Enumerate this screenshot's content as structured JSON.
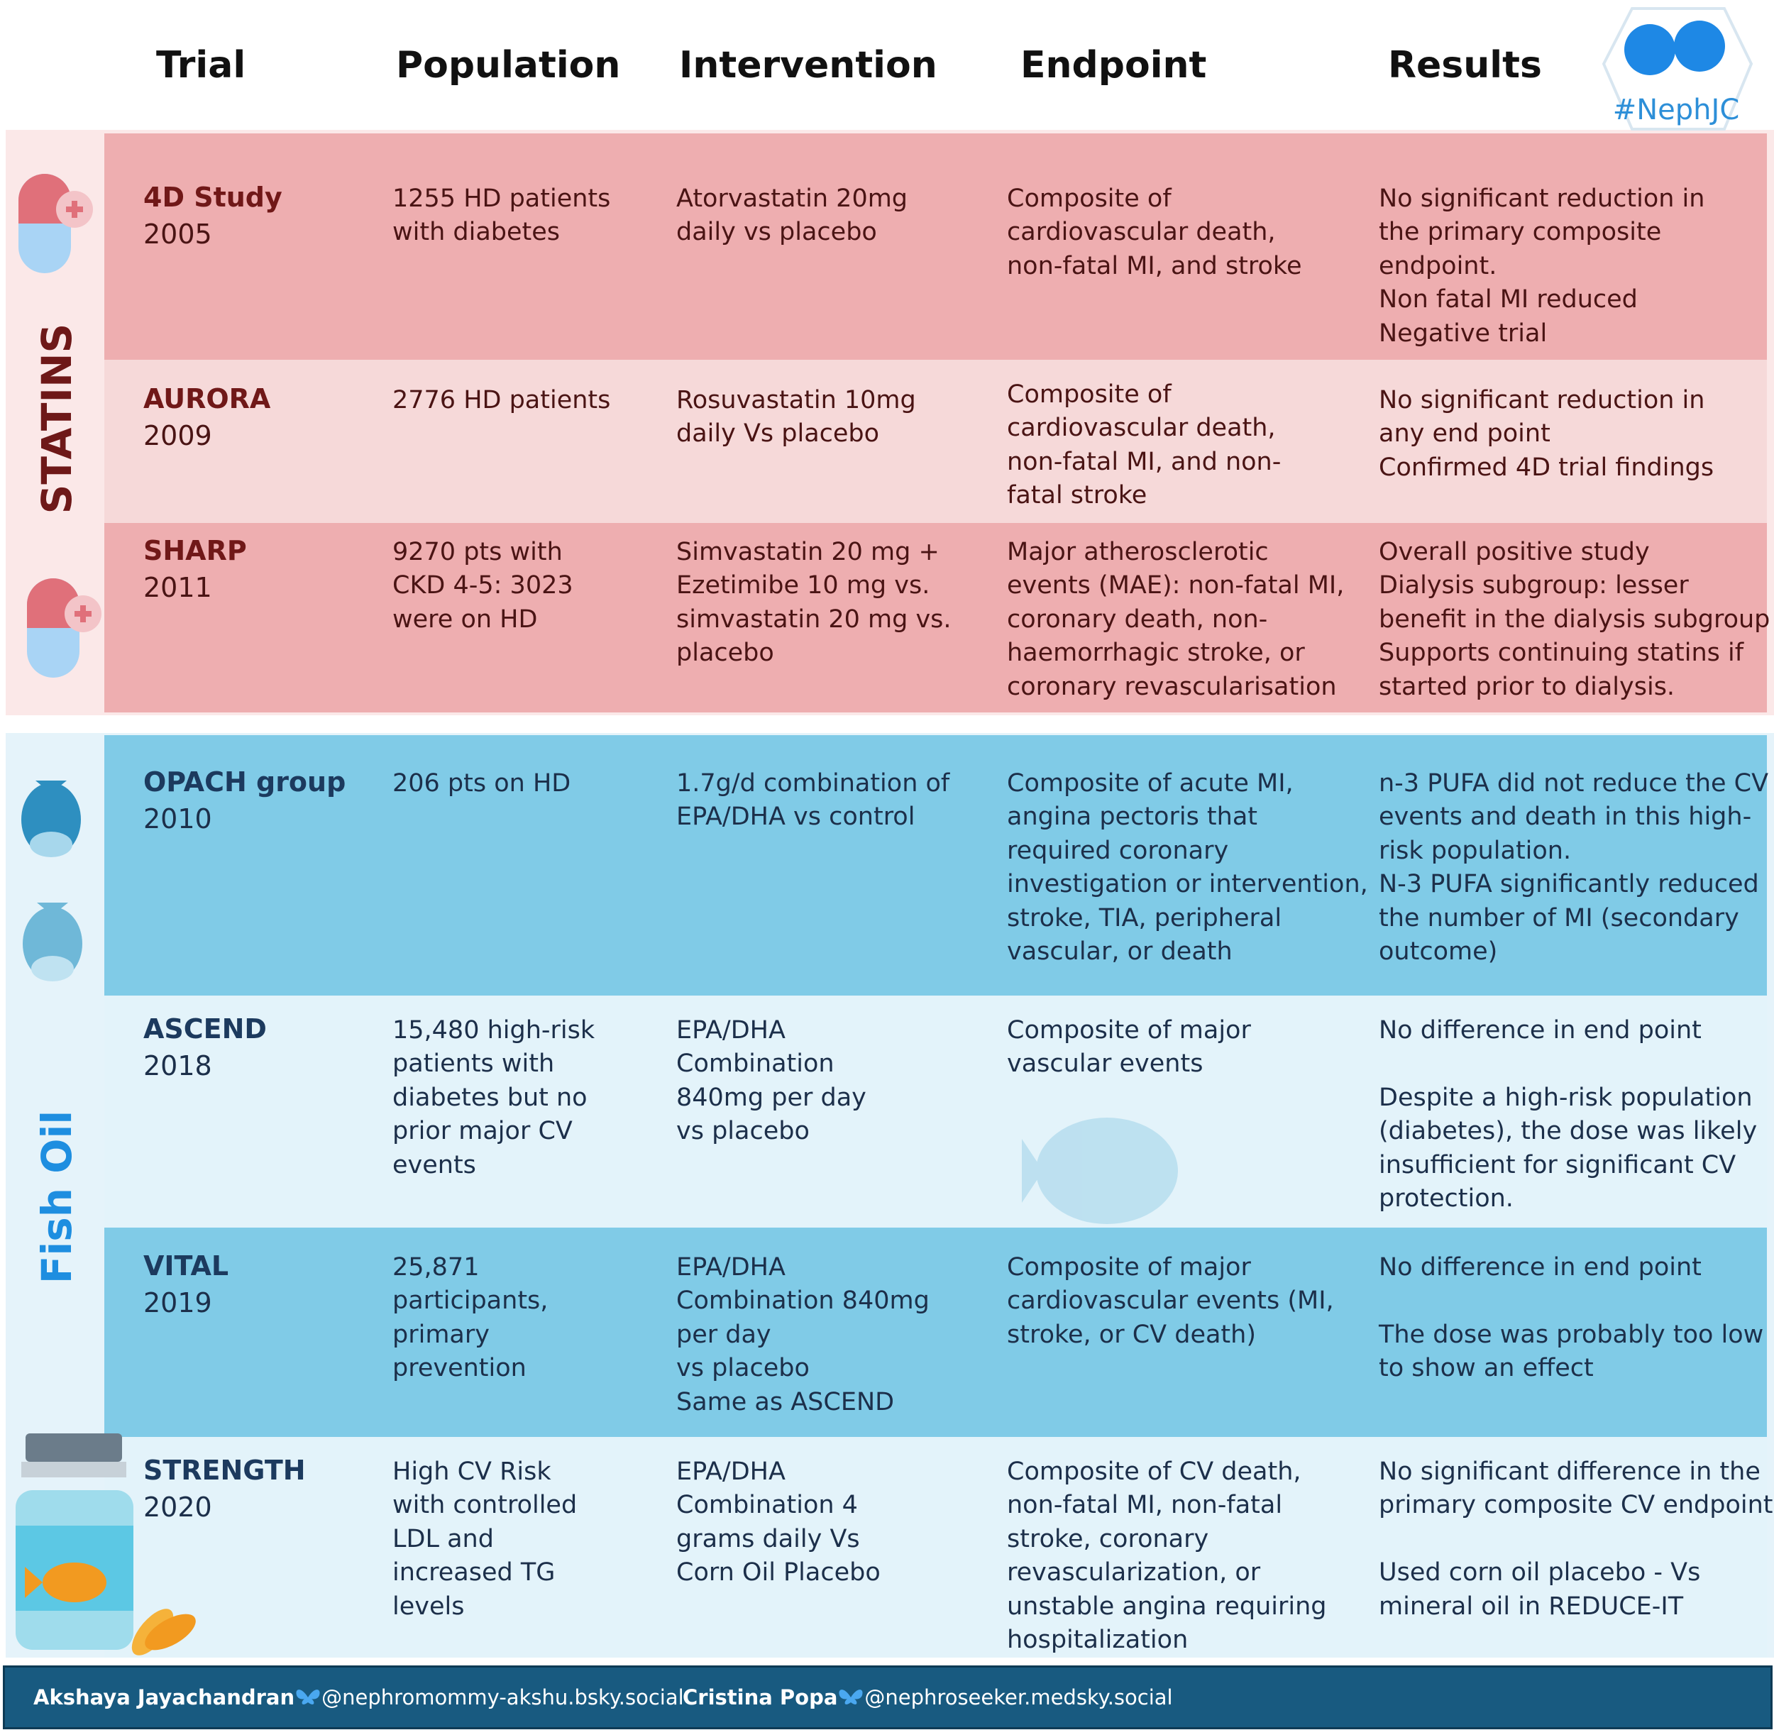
{
  "header": {
    "columns": [
      "Trial",
      "Population",
      "Intervention",
      "Endpoint",
      "Results"
    ],
    "logo": "#NephJC"
  },
  "sections": [
    {
      "label": "STATINS",
      "rows": [
        {
          "trial": "4D Study",
          "year": "2005",
          "population": [
            "1255 HD patients",
            "with diabetes"
          ],
          "intervention": [
            "Atorvastatin 20mg",
            "daily vs placebo"
          ],
          "endpoint": [
            "Composite of",
            "cardiovascular death,",
            "non-fatal MI, and stroke"
          ],
          "results": [
            "No significant reduction in",
            "the primary composite",
            "endpoint.",
            "Non fatal MI reduced",
            "Negative trial"
          ]
        },
        {
          "trial": "AURORA",
          "year": "2009",
          "population": [
            "2776 HD patients"
          ],
          "intervention": [
            "Rosuvastatin 10mg",
            "daily Vs placebo"
          ],
          "endpoint": [
            "Composite of",
            "cardiovascular death,",
            "non-fatal MI, and non-",
            "fatal stroke"
          ],
          "results": [
            "No significant reduction in",
            "any end point",
            "Confirmed 4D trial findings"
          ]
        },
        {
          "trial": "SHARP",
          "year": "2011",
          "population": [
            "9270 pts with",
            "CKD 4-5: 3023",
            "were on HD"
          ],
          "intervention": [
            "Simvastatin 20 mg +",
            "Ezetimibe 10 mg vs.",
            "simvastatin 20 mg vs.",
            "placebo"
          ],
          "endpoint": [
            "Major atherosclerotic",
            "events (MAE): non-fatal MI,",
            "coronary death, non-",
            "haemorrhagic stroke, or",
            "coronary revascularisation"
          ],
          "results": [
            "Overall positive study",
            "Dialysis subgroup: lesser",
            "benefit  in the dialysis subgroup",
            "Supports continuing statins if",
            "started prior to dialysis."
          ]
        }
      ]
    },
    {
      "label": "Fish Oil",
      "rows": [
        {
          "trial": "OPACH group",
          "year": "2010",
          "population": [
            "206 pts on HD"
          ],
          "intervention": [
            "1.7g/d combination of",
            "EPA/DHA vs control"
          ],
          "endpoint": [
            "Composite of acute MI,",
            "angina pectoris that",
            "required coronary",
            "investigation or intervention,",
            "stroke, TIA, peripheral",
            "vascular, or death"
          ],
          "results": [
            "n-3 PUFA did not reduce the CV",
            "events and death in this high-",
            "risk population.",
            "N-3 PUFA significantly reduced",
            "the number of MI (secondary",
            "outcome)"
          ]
        },
        {
          "trial": "ASCEND",
          "year": "2018",
          "population": [
            "15,480 high-risk",
            "patients with",
            "diabetes but no",
            "prior major CV",
            "events"
          ],
          "intervention": [
            "EPA/DHA",
            "Combination",
            "840mg per day",
            "vs placebo"
          ],
          "endpoint": [
            "Composite of major",
            "vascular events"
          ],
          "results": [
            "No difference in end point",
            "",
            "Despite a high-risk population",
            "(diabetes), the dose was likely",
            "insufficient for significant CV",
            "protection."
          ]
        },
        {
          "trial": "VITAL",
          "year": "2019",
          "population": [
            "25,871",
            "participants,",
            "primary",
            "prevention"
          ],
          "intervention": [
            "EPA/DHA",
            "Combination 840mg",
            "per day",
            "vs placebo",
            "Same as ASCEND"
          ],
          "endpoint": [
            "Composite of major",
            "cardiovascular events (MI,",
            "stroke, or CV death)"
          ],
          "results": [
            "No difference in end point",
            "",
            "The dose was probably too low",
            "to show an effect"
          ]
        },
        {
          "trial": "STRENGTH",
          "year": "2020",
          "population": [
            "High CV Risk",
            "with controlled",
            "LDL and",
            "increased TG",
            "levels"
          ],
          "intervention": [
            "EPA/DHA",
            "Combination 4",
            "grams daily Vs",
            "Corn Oil Placebo"
          ],
          "endpoint": [
            "Composite of CV death,",
            "non-fatal MI, non-fatal",
            "stroke, coronary",
            "revascularization, or",
            "unstable angina requiring",
            "hospitalization"
          ],
          "results": [
            "No significant difference in the",
            "primary composite CV endpoint",
            "",
            "Used corn oil placebo - Vs",
            "mineral oil in REDUCE-IT"
          ]
        }
      ]
    }
  ],
  "footer": {
    "authors": [
      {
        "name": "Akshaya Jayachandran",
        "handle": "@nephromommy-akshu.bsky.social"
      },
      {
        "name": "Cristina Popa",
        "handle": "@nephroseeker.medsky.social"
      }
    ]
  }
}
